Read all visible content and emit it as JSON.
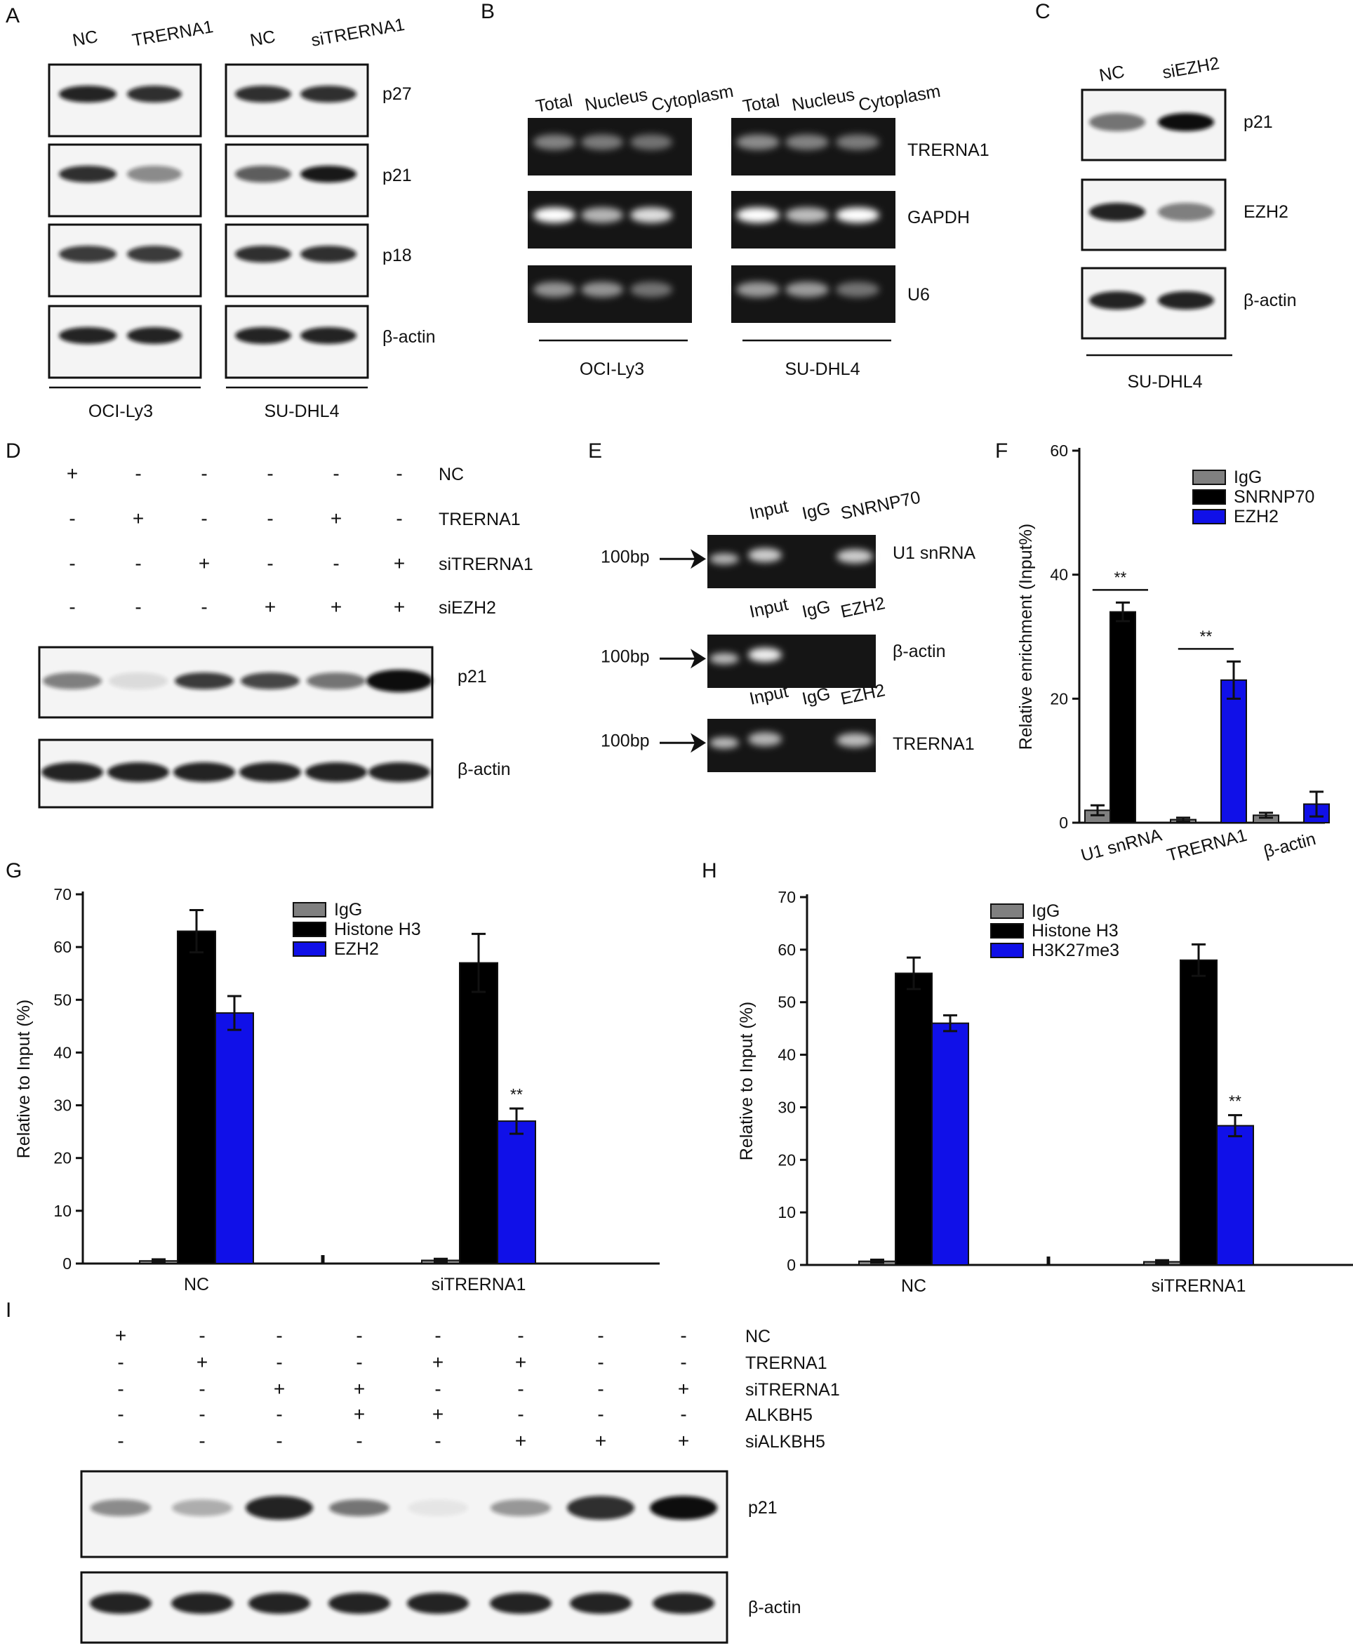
{
  "panel_letters": [
    "A",
    "B",
    "C",
    "D",
    "E",
    "F",
    "G",
    "H",
    "I"
  ],
  "panel_a": {
    "lanes": [
      "NC",
      "TRERNA1",
      "NC",
      "siTRERNA1"
    ],
    "proteins": [
      "p27",
      "p21",
      "p18",
      "β-actin"
    ],
    "cells": [
      "OCI-Ly3",
      "SU-DHL4"
    ]
  },
  "panel_b": {
    "fractions": [
      "Total",
      "Nucleus",
      "Cytoplasm",
      "Total",
      "Nucleus",
      "Cytoplasm"
    ],
    "rnas": [
      "TRERNA1",
      "GAPDH",
      "U6"
    ],
    "cells": [
      "OCI-Ly3",
      "SU-DHL4"
    ]
  },
  "panel_c": {
    "lanes": [
      "NC",
      "siEZH2"
    ],
    "proteins": [
      "p21",
      "EZH2",
      "β-actin"
    ],
    "cell": "SU-DHL4"
  },
  "panel_d": {
    "rows": [
      {
        "name": "NC",
        "marks": [
          "+",
          "-",
          "-",
          "-",
          "-",
          "-"
        ]
      },
      {
        "name": "TRERNA1",
        "marks": [
          "-",
          "+",
          "-",
          "-",
          "+",
          "-"
        ]
      },
      {
        "name": "siTRERNA1",
        "marks": [
          "-",
          "-",
          "+",
          "-",
          "-",
          "+"
        ]
      },
      {
        "name": "siEZH2",
        "marks": [
          "-",
          "-",
          "-",
          "+",
          "+",
          "+"
        ]
      }
    ],
    "proteins": [
      "p21",
      "β-actin"
    ],
    "p21_levels": [
      0.5,
      0.1,
      0.8,
      0.75,
      0.55,
      1.0
    ]
  },
  "panel_e": {
    "size_marker": "100bp",
    "rows": [
      {
        "lanes": [
          "Input",
          "IgG",
          "SNRNP70"
        ],
        "target": "U1 snRNA"
      },
      {
        "lanes": [
          "Input",
          "IgG",
          "EZH2"
        ],
        "target": "β-actin"
      },
      {
        "lanes": [
          "Input",
          "IgG",
          "EZH2"
        ],
        "target": "TRERNA1"
      }
    ]
  },
  "panel_i": {
    "rows": [
      {
        "name": "NC",
        "marks": [
          "+",
          "-",
          "-",
          "-",
          "-",
          "-",
          "-",
          "-"
        ]
      },
      {
        "name": "TRERNA1",
        "marks": [
          "-",
          "+",
          "-",
          "-",
          "+",
          "+",
          "-",
          "-"
        ]
      },
      {
        "name": "siTRERNA1",
        "marks": [
          "-",
          "-",
          "+",
          "+",
          "-",
          "-",
          "-",
          "+"
        ]
      },
      {
        "name": "ALKBH5",
        "marks": [
          "-",
          "-",
          "-",
          "+",
          "+",
          "-",
          "-",
          "-"
        ]
      },
      {
        "name": "siALKBH5",
        "marks": [
          "-",
          "-",
          "-",
          "-",
          "-",
          "+",
          "+",
          "+"
        ]
      }
    ],
    "proteins": [
      "p21",
      "β-actin"
    ],
    "p21_levels": [
      0.45,
      0.3,
      0.9,
      0.55,
      0.05,
      0.4,
      0.85,
      1.0
    ]
  },
  "colors": {
    "igg": "#808080",
    "histone_h3": "#000000",
    "blue": "#1010e8",
    "blot_bg": "#f4f4f4",
    "gel_bg": "#151515"
  },
  "chart_data": [
    {
      "panel": "F",
      "type": "bar",
      "categories": [
        "U1 snRNA",
        "TRERNA1",
        "β-actin"
      ],
      "series": [
        {
          "name": "IgG",
          "values": [
            2,
            0.5,
            1.2
          ],
          "errors": [
            0.8,
            0.3,
            0.4
          ]
        },
        {
          "name": "SNRNP70",
          "values": [
            34,
            0,
            0
          ],
          "errors": [
            1.5,
            0,
            0
          ]
        },
        {
          "name": "EZH2",
          "values": [
            0,
            23,
            3
          ],
          "errors": [
            0,
            3,
            2
          ]
        }
      ],
      "ylabel": "Relative enrichment (Input%)",
      "yticks": [
        0,
        20,
        40,
        60
      ],
      "ylim": [
        0,
        60
      ],
      "significance": [
        {
          "category": "U1 snRNA",
          "label": "**"
        },
        {
          "category": "TRERNA1",
          "label": "**"
        }
      ],
      "legend_position": "top-right"
    },
    {
      "panel": "G",
      "type": "bar",
      "categories": [
        "NC",
        "siTRERNA1"
      ],
      "series": [
        {
          "name": "IgG",
          "values": [
            0.5,
            0.6
          ],
          "errors": [
            0.3,
            0.3
          ]
        },
        {
          "name": "Histone H3",
          "values": [
            63,
            57
          ],
          "errors": [
            4,
            5.5
          ]
        },
        {
          "name": "EZH2",
          "values": [
            47.5,
            27
          ],
          "errors": [
            3.2,
            2.4
          ]
        }
      ],
      "ylabel": "Relative to Input (%)",
      "yticks": [
        0,
        10,
        20,
        30,
        40,
        50,
        60,
        70
      ],
      "ylim": [
        0,
        70
      ],
      "significance": [
        {
          "category": "siTRERNA1",
          "label": "**"
        }
      ],
      "legend_position": "top-right"
    },
    {
      "panel": "H",
      "type": "bar",
      "categories": [
        "NC",
        "siTRERNA1"
      ],
      "series": [
        {
          "name": "IgG",
          "values": [
            0.7,
            0.6
          ],
          "errors": [
            0.3,
            0.3
          ]
        },
        {
          "name": "Histone H3",
          "values": [
            55.5,
            58
          ],
          "errors": [
            3,
            3
          ]
        },
        {
          "name": "H3K27me3",
          "values": [
            46,
            26.5
          ],
          "errors": [
            1.5,
            2
          ]
        }
      ],
      "ylabel": "Relative to Input (%)",
      "yticks": [
        0,
        10,
        20,
        30,
        40,
        50,
        60,
        70
      ],
      "ylim": [
        0,
        70
      ],
      "significance": [
        {
          "category": "siTRERNA1",
          "label": "**"
        }
      ],
      "legend_position": "top-right"
    }
  ]
}
